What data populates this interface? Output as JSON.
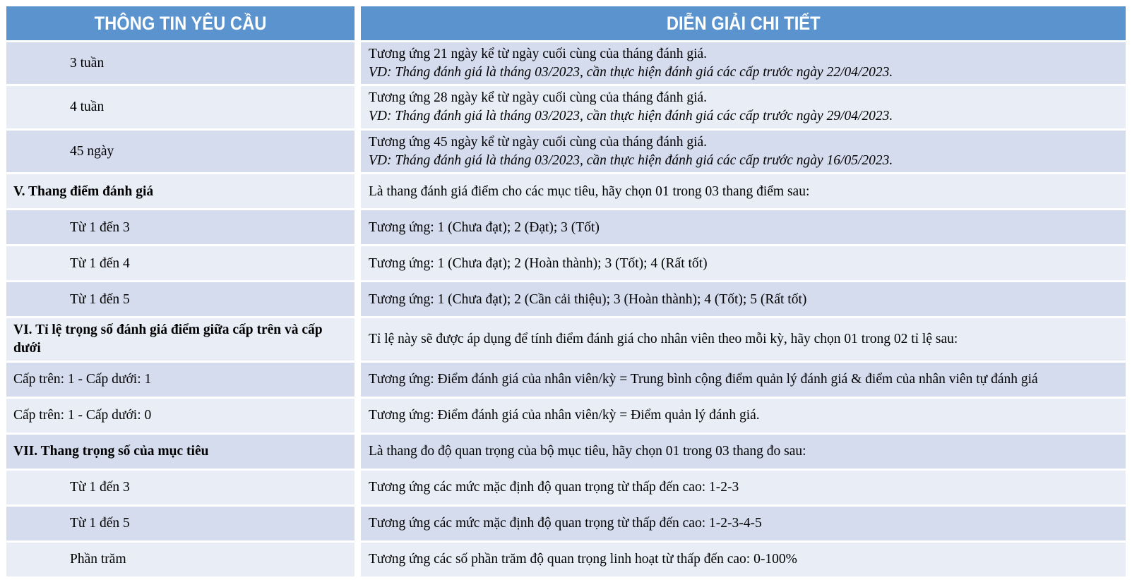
{
  "header": {
    "col1": "THÔNG TIN YÊU CẦU",
    "col2": "DIỄN GIẢI CHI TIẾT"
  },
  "colors": {
    "header_bg": "#5b93ce",
    "row_dark": "#d4dcee",
    "row_light": "#e9edf6",
    "header_text": "#ffffff",
    "body_text": "#000000"
  },
  "rows": [
    {
      "label": "3 tuần",
      "style": "indent",
      "desc": "Tương ứng 21 ngày kể từ ngày cuối cùng của tháng đánh giá.",
      "example": "VD: Tháng đánh giá là tháng 03/2023, cần thực hiện đánh giá các cấp trước ngày 22/04/2023."
    },
    {
      "label": "4 tuần",
      "style": "indent",
      "desc": "Tương ứng 28 ngày kể từ ngày cuối cùng của tháng đánh giá.",
      "example": "VD: Tháng đánh giá là tháng 03/2023, cần thực hiện đánh giá các cấp trước ngày 29/04/2023."
    },
    {
      "label": "45 ngày",
      "style": "indent",
      "desc": "Tương ứng 45 ngày kể từ ngày cuối cùng của tháng đánh giá.",
      "example": "VD: Tháng đánh giá là tháng 03/2023, cần thực hiện đánh giá các cấp trước ngày 16/05/2023."
    },
    {
      "label": "V. Thang điểm đánh giá",
      "style": "section",
      "desc": "Là thang đánh giá điểm cho các mục tiêu, hãy chọn 01 trong 03 thang điểm sau:"
    },
    {
      "label": "Từ 1 đến 3",
      "style": "indent",
      "desc": "Tương ứng: 1 (Chưa đạt); 2 (Đạt); 3 (Tốt)"
    },
    {
      "label": "Từ 1 đến 4",
      "style": "indent",
      "desc": "Tương ứng: 1 (Chưa đạt); 2 (Hoàn thành); 3 (Tốt); 4 (Rất tốt)"
    },
    {
      "label": "Từ 1 đến 5",
      "style": "indent",
      "desc": "Tương ứng: 1 (Chưa đạt); 2 (Cần cải thiệu); 3 (Hoàn thành); 4 (Tốt); 5 (Rất tốt)"
    },
    {
      "label": "VI. Tỉ lệ trọng số đánh giá điểm giữa cấp trên và cấp dưới",
      "style": "section",
      "desc": "Tỉ lệ này sẽ được áp dụng để tính điểm đánh giá cho nhân viên theo mỗi kỳ, hãy chọn 01 trong 02 tỉ lệ sau:"
    },
    {
      "label": "Cấp trên: 1 - Cấp dưới: 1",
      "style": "flush",
      "desc": "Tương ứng: Điểm đánh giá của nhân viên/kỳ = Trung bình cộng điểm quản lý đánh giá & điểm của nhân viên tự đánh giá"
    },
    {
      "label": "Cấp trên: 1 - Cấp dưới: 0",
      "style": "flush",
      "desc": "Tương ứng: Điểm đánh giá của nhân viên/kỳ = Điểm quản lý đánh giá."
    },
    {
      "label": "VII. Thang trọng số của mục tiêu",
      "style": "section",
      "desc": "Là thang đo độ quan trọng của bộ mục tiêu, hãy chọn 01 trong 03 thang đo sau:"
    },
    {
      "label": "Từ 1 đến 3",
      "style": "indent",
      "desc": "Tương ứng các mức mặc định độ quan trọng từ thấp đến cao: 1-2-3"
    },
    {
      "label": "Từ 1 đến 5",
      "style": "indent",
      "desc": "Tương ứng các mức mặc định  độ quan trọng từ thấp đến cao: 1-2-3-4-5"
    },
    {
      "label": "Phần trăm",
      "style": "indent",
      "desc": "Tương ứng các số phần trăm độ quan trọng linh hoạt từ thấp đến cao: 0-100%"
    }
  ]
}
